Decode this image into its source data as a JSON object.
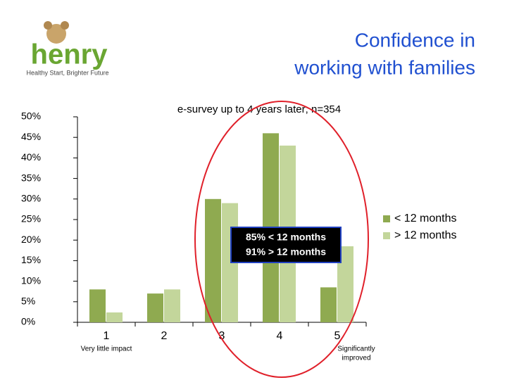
{
  "logo": {
    "name": "henry",
    "tagline": "Healthy Start, Brighter Future"
  },
  "chart_data": {
    "type": "bar",
    "title": [
      "Confidence in",
      "working with families"
    ],
    "subtitle": "e-survey up to 4 years later; n=354",
    "categories": [
      "1",
      "2",
      "3",
      "4",
      "5"
    ],
    "category_notes": [
      "Very little impact",
      null,
      null,
      null,
      [
        "Significantly",
        "improved"
      ]
    ],
    "series": [
      {
        "name": "< 12 months",
        "color": "#8faa50",
        "values": [
          8,
          7,
          30,
          46,
          8.5
        ]
      },
      {
        "name": "> 12 months",
        "color": "#c3d69b",
        "values": [
          2.4,
          8,
          29,
          43,
          18.5
        ]
      }
    ],
    "ylim": [
      0,
      50
    ],
    "yticks": [
      {
        "value": 0,
        "label": "0%"
      },
      {
        "value": 5,
        "label": "5%"
      },
      {
        "value": 10,
        "label": "10%"
      },
      {
        "value": 15,
        "label": "15%"
      },
      {
        "value": 20,
        "label": "20%"
      },
      {
        "value": 25,
        "label": "25%"
      },
      {
        "value": 30,
        "label": "30%"
      },
      {
        "value": 35,
        "label": "35%"
      },
      {
        "value": 40,
        "label": "40%"
      },
      {
        "value": 45,
        "label": "45%"
      },
      {
        "value": 50,
        "label": "50%"
      }
    ],
    "annotations": [
      "85% < 12 months",
      "91% > 12 months"
    ],
    "legend": "right"
  }
}
